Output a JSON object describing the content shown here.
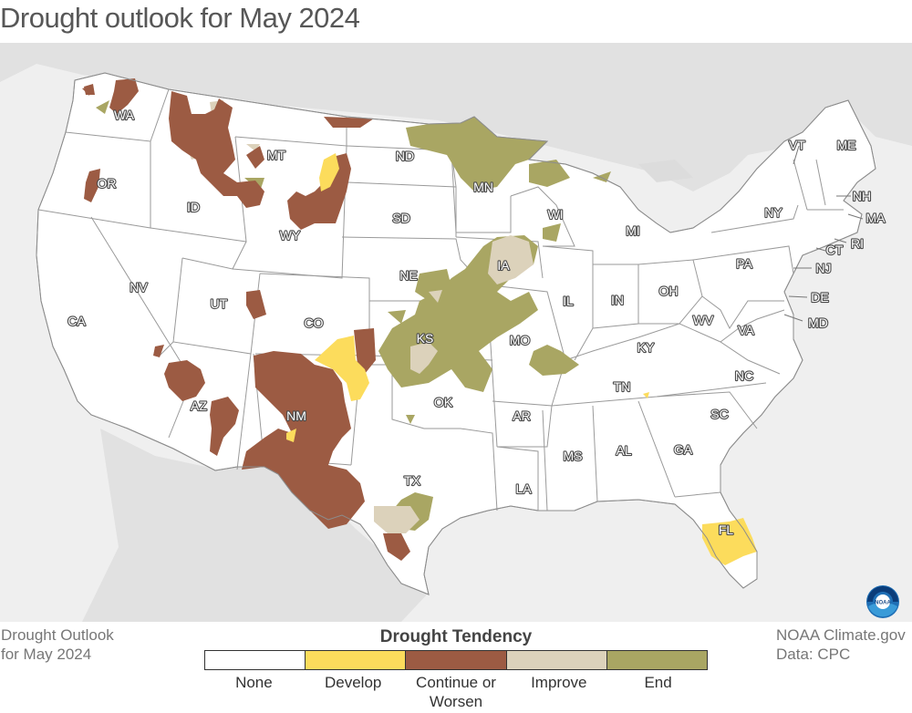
{
  "title": "Drought outlook for May 2024",
  "footer_left": [
    "Drought Outlook",
    "for May 2024"
  ],
  "footer_right": [
    "NOAA Climate.gov",
    "Data: CPC"
  ],
  "legend": {
    "title": "Drought Tendency",
    "items": [
      {
        "label": "None",
        "color": "#ffffff"
      },
      {
        "label": "Develop",
        "color": "#fcdc5c"
      },
      {
        "label": "Continue or Worsen",
        "color": "#9c5b43"
      },
      {
        "label": "Improve",
        "color": "#dcd2bb"
      },
      {
        "label": "End",
        "color": "#a9a663"
      }
    ]
  },
  "colors": {
    "background": "#efefef",
    "land": "#ffffff",
    "border": "#8c8c8c",
    "develop": "#fcdc5c",
    "continue": "#9c5b43",
    "improve": "#dcd2bb",
    "end": "#a9a663"
  },
  "states": {
    "WA": "WA",
    "OR": "OR",
    "CA": "CA",
    "ID": "ID",
    "NV": "NV",
    "MT": "MT",
    "WY": "WY",
    "UT": "UT",
    "AZ": "AZ",
    "CO": "CO",
    "NM": "NM",
    "ND": "ND",
    "SD": "SD",
    "NE": "NE",
    "KS": "KS",
    "OK": "OK",
    "TX": "TX",
    "MN": "MN",
    "IA": "IA",
    "MO": "MO",
    "AR": "AR",
    "LA": "LA",
    "WI": "WI",
    "IL": "IL",
    "MI": "MI",
    "IN": "IN",
    "OH": "OH",
    "KY": "KY",
    "TN": "TN",
    "MS": "MS",
    "AL": "AL",
    "GA": "GA",
    "FL": "FL",
    "SC": "SC",
    "NC": "NC",
    "VA": "VA",
    "WV": "WV",
    "PA": "PA",
    "NY": "NY",
    "VT": "VT",
    "ME": "ME",
    "NH": "NH",
    "MA": "MA",
    "RI": "RI",
    "CT": "CT",
    "NJ": "NJ",
    "DE": "DE",
    "MD": "MD"
  },
  "logo": "noaa-logo"
}
